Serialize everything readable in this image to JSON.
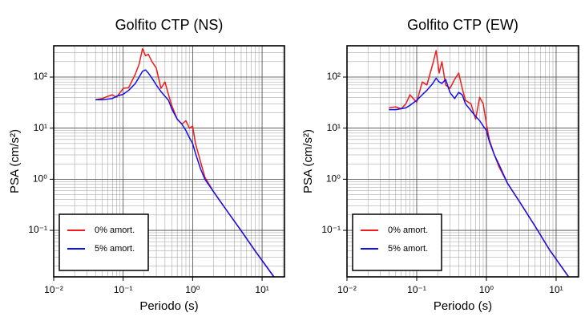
{
  "chart_data": [
    {
      "type": "line",
      "title": "Golfito CTP (NS)",
      "x_label": "Periodo (s)",
      "y_label": "PSA (cm/s²)",
      "log_x": true,
      "log_y": true,
      "grid": true,
      "legend": "lower left",
      "xlim": [
        0.01,
        21
      ],
      "ylim": [
        0.0123,
        410
      ],
      "xticks": [
        {
          "value": 0.01,
          "label": "10⁻²"
        },
        {
          "value": 0.1,
          "label": "10⁻¹"
        },
        {
          "value": 1,
          "label": "10⁰"
        },
        {
          "value": 10,
          "label": "10¹"
        }
      ],
      "yticks": [
        {
          "value": 0.1,
          "label": "10⁻¹"
        },
        {
          "value": 1,
          "label": "10⁰"
        },
        {
          "value": 10,
          "label": "10¹"
        },
        {
          "value": 100,
          "label": "10²"
        }
      ],
      "x": [
        0.04,
        0.05,
        0.06,
        0.07,
        0.08,
        0.1,
        0.12,
        0.15,
        0.17,
        0.19,
        0.21,
        0.23,
        0.26,
        0.3,
        0.35,
        0.4,
        0.45,
        0.5,
        0.6,
        0.7,
        0.8,
        0.9,
        1.0,
        1.1,
        1.3,
        1.5,
        2,
        3,
        5,
        8,
        14.8
      ],
      "series": [
        {
          "name": "0% amort.",
          "color": "#ee1c1c",
          "values": [
            36,
            38,
            42,
            45,
            40,
            60,
            62,
            115,
            180,
            360,
            260,
            280,
            200,
            150,
            60,
            80,
            45,
            28,
            15,
            12,
            14,
            10,
            11,
            5,
            2.2,
            1.1,
            0.57,
            0.26,
            0.098,
            0.039,
            0.0123
          ]
        },
        {
          "name": "5% amort.",
          "color": "#1010ee",
          "values": [
            36,
            36,
            37,
            38,
            42,
            46,
            55,
            75,
            100,
            130,
            138,
            120,
            95,
            70,
            52,
            42,
            35,
            24,
            15,
            12,
            9,
            6.5,
            5,
            3.2,
            1.6,
            1.0,
            0.57,
            0.26,
            0.098,
            0.039,
            0.0123
          ]
        }
      ]
    },
    {
      "type": "line",
      "title": "Golfito CTP (EW)",
      "x_label": "Periodo (s)",
      "y_label": "PSA (cm/s²)",
      "log_x": true,
      "log_y": true,
      "grid": true,
      "legend": "lower left",
      "xlim": [
        0.01,
        21
      ],
      "ylim": [
        0.0123,
        410
      ],
      "xticks": [
        {
          "value": 0.01,
          "label": "10⁻²"
        },
        {
          "value": 0.1,
          "label": "10⁻¹"
        },
        {
          "value": 1,
          "label": "10⁰"
        },
        {
          "value": 10,
          "label": "10¹"
        }
      ],
      "yticks": [
        {
          "value": 0.1,
          "label": "10⁻¹"
        },
        {
          "value": 1,
          "label": "10⁰"
        },
        {
          "value": 10,
          "label": "10¹"
        },
        {
          "value": 100,
          "label": "10²"
        }
      ],
      "x": [
        0.04,
        0.05,
        0.06,
        0.07,
        0.08,
        0.1,
        0.12,
        0.14,
        0.17,
        0.19,
        0.21,
        0.23,
        0.26,
        0.3,
        0.35,
        0.4,
        0.45,
        0.5,
        0.6,
        0.7,
        0.8,
        0.9,
        1.0,
        1.1,
        1.3,
        1.5,
        2,
        3,
        5,
        8,
        15
      ],
      "series": [
        {
          "name": "0% amort.",
          "color": "#ee1c1c",
          "values": [
            25,
            26,
            24,
            30,
            45,
            32,
            80,
            70,
            180,
            330,
            120,
            200,
            70,
            60,
            90,
            120,
            60,
            35,
            30,
            15,
            40,
            30,
            12,
            6,
            3,
            1.8,
            0.84,
            0.36,
            0.12,
            0.042,
            0.0125
          ]
        },
        {
          "name": "5% amort.",
          "color": "#1010ee",
          "values": [
            23,
            23,
            24,
            25,
            28,
            35,
            45,
            55,
            75,
            95,
            80,
            75,
            90,
            50,
            38,
            50,
            45,
            30,
            22,
            17,
            14,
            11,
            9,
            5.5,
            3,
            2,
            0.84,
            0.36,
            0.12,
            0.042,
            0.0125
          ]
        }
      ]
    }
  ]
}
